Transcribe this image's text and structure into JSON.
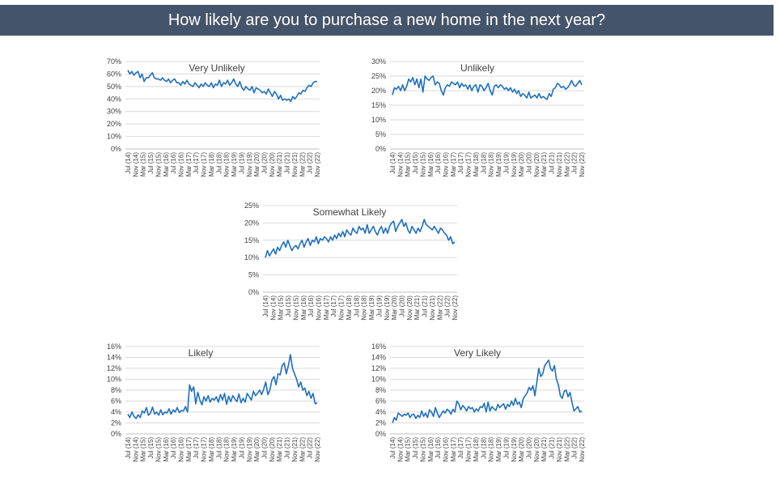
{
  "title": "How likely are you to purchase a new home in the next year?",
  "colors": {
    "title_bg": "#44546a",
    "title_text": "#ffffff",
    "line": "#1f6fbf",
    "grid": "#d9d9d9",
    "text": "#404040"
  },
  "chart_data": [
    {
      "type": "line",
      "title": "Very Unlikely",
      "yticks": [
        "0%",
        "10%",
        "20%",
        "30%",
        "40%",
        "50%",
        "60%",
        "70%"
      ],
      "ylim": [
        0,
        70
      ],
      "xticks": [
        "Jul (14)",
        "Nov (14)",
        "Mar (15)",
        "Jul (15)",
        "Nov (15)",
        "Mar (16)",
        "Jul (16)",
        "Nov (16)",
        "Mar (17)",
        "Jul (17)",
        "Nov (17)",
        "Mar (18)",
        "Jul (18)",
        "Nov (18)",
        "Mar (19)",
        "Jul (19)",
        "Nov (19)",
        "Mar (20)",
        "Jul (20)",
        "Nov (20)",
        "Mar (21)",
        "Jul (21)",
        "Nov (21)",
        "Mar (22)",
        "Jul (22)",
        "Nov (22)"
      ],
      "series": [
        {
          "values": [
            63,
            60,
            62,
            59,
            61,
            62,
            57,
            60,
            54,
            57,
            57,
            59,
            61,
            57,
            56,
            56,
            55,
            57,
            55,
            54,
            56,
            53,
            55,
            56,
            53,
            53,
            51,
            54,
            52,
            55,
            52,
            51,
            50,
            53,
            51,
            49,
            52,
            50,
            53,
            51,
            50,
            53,
            49,
            52,
            51,
            55,
            50,
            53,
            52,
            55,
            51,
            53,
            56,
            52,
            50,
            54,
            49,
            47,
            50,
            48,
            47,
            50,
            45,
            49,
            48,
            47,
            45,
            46,
            44,
            48,
            45,
            42,
            46,
            44,
            40,
            43,
            39,
            40,
            39,
            40,
            38,
            42,
            40,
            42,
            45,
            44,
            47,
            46,
            49,
            51,
            50,
            53,
            54,
            54
          ]
        }
      ]
    },
    {
      "type": "line",
      "title": "Unlikely",
      "yticks": [
        "0%",
        "5%",
        "10%",
        "15%",
        "20%",
        "25%",
        "30%"
      ],
      "ylim": [
        0,
        30
      ],
      "xticks": [
        "Jul (14)",
        "Nov (14)",
        "Mar (15)",
        "Jul (15)",
        "Nov (15)",
        "Mar (16)",
        "Jul (16)",
        "Nov (16)",
        "Mar (17)",
        "Jul (17)",
        "Nov (17)",
        "Mar (18)",
        "Jul (18)",
        "Nov (18)",
        "Mar (19)",
        "Jul (19)",
        "Nov (19)",
        "Mar (20)",
        "Jul (20)",
        "Nov (20)",
        "Mar (21)",
        "Jul (21)",
        "Nov (21)",
        "Mar (22)",
        "Jul (22)",
        "Nov (22)"
      ],
      "series": [
        {
          "values": [
            18.5,
            21,
            20.5,
            21.5,
            20,
            22,
            20,
            21.5,
            24,
            23,
            24.5,
            22,
            24,
            21,
            24,
            19.5,
            25,
            24,
            23.5,
            24.5,
            25,
            22,
            23,
            22.5,
            20,
            18.5,
            21,
            22,
            21.5,
            23,
            22.5,
            22,
            23,
            21,
            22.5,
            21.5,
            22,
            20.5,
            22,
            20,
            21.5,
            22,
            19.5,
            22,
            21.5,
            20,
            21,
            22.5,
            20,
            18.5,
            21.5,
            22,
            21,
            22,
            21.5,
            20.5,
            21,
            20,
            21,
            19.5,
            20.5,
            19,
            20,
            18,
            19,
            18.5,
            17.5,
            19.5,
            17.5,
            18,
            18.5,
            17.5,
            19,
            17.5,
            18,
            17.5,
            17,
            19,
            18,
            20.5,
            21,
            22.5,
            22,
            21,
            21.5,
            20.5,
            21,
            22,
            23.5,
            22,
            21.5,
            22.5,
            23.5,
            22
          ]
        }
      ]
    },
    {
      "type": "line",
      "title": "Somewhat Likely",
      "yticks": [
        "0%",
        "5%",
        "10%",
        "15%",
        "20%",
        "25%"
      ],
      "ylim": [
        0,
        25
      ],
      "xticks": [
        "Jul (14)",
        "Nov (14)",
        "Mar (15)",
        "Jul (15)",
        "Nov (15)",
        "Mar (16)",
        "Jul (16)",
        "Nov (16)",
        "Mar (17)",
        "Jul (17)",
        "Nov (17)",
        "Mar (18)",
        "Jul (18)",
        "Nov (18)",
        "Mar (19)",
        "Jul (19)",
        "Nov (19)",
        "Mar (20)",
        "Jul (20)",
        "Nov (20)",
        "Mar (21)",
        "Jul (21)",
        "Nov (21)",
        "Mar (22)",
        "Jul (22)",
        "Nov (22)"
      ],
      "series": [
        {
          "values": [
            10,
            12,
            10.5,
            11.5,
            12.5,
            11,
            13,
            12,
            13.5,
            14.5,
            13,
            15,
            13.5,
            12,
            13,
            13.5,
            12.5,
            14,
            15,
            13,
            14.5,
            15.5,
            13.5,
            15,
            14.5,
            16,
            14,
            15.5,
            15,
            16,
            15.5,
            14.5,
            16,
            15,
            16.5,
            15.5,
            17,
            16,
            17.5,
            16,
            18,
            17,
            16.5,
            18.5,
            17.5,
            17,
            19,
            18,
            18.5,
            17,
            19.5,
            17,
            18,
            19,
            17.5,
            16.5,
            18,
            19,
            17,
            18.5,
            17,
            19,
            20,
            20.5,
            17.5,
            19,
            20,
            21,
            19,
            20,
            18,
            17,
            19,
            18,
            17,
            18.5,
            17.5,
            19,
            21,
            19.5,
            19,
            18.5,
            18,
            19,
            18,
            17,
            18.5,
            18,
            17,
            16.5,
            15,
            16,
            14,
            14.5
          ]
        }
      ]
    },
    {
      "type": "line",
      "title": "Likely",
      "yticks": [
        "0%",
        "2%",
        "4%",
        "6%",
        "8%",
        "10%",
        "12%",
        "14%",
        "16%"
      ],
      "ylim": [
        0,
        16
      ],
      "xticks": [
        "Jul (14)",
        "Nov (14)",
        "Mar (15)",
        "Jul (15)",
        "Nov (15)",
        "Mar (16)",
        "Jul (16)",
        "Nov (16)",
        "Mar (17)",
        "Jul (17)",
        "Nov (17)",
        "Mar (18)",
        "Jul (18)",
        "Nov (18)",
        "Mar (19)",
        "Jul (19)",
        "Nov (19)",
        "Mar (20)",
        "Jul (20)",
        "Nov (20)",
        "Mar (21)",
        "Jul (21)",
        "Nov (21)",
        "Mar (22)",
        "Jul (22)",
        "Nov (22)"
      ],
      "series": [
        {
          "values": [
            3.6,
            3,
            4,
            3.2,
            2.8,
            3.5,
            3,
            4.2,
            3.8,
            4.8,
            3.4,
            3.8,
            4.9,
            3.6,
            4,
            3.4,
            4.4,
            3.5,
            4,
            3.8,
            4.6,
            3.6,
            4.4,
            4,
            4.8,
            3.9,
            4.3,
            4.2,
            5,
            4,
            9,
            7.8,
            8.6,
            5.5,
            7.6,
            6.2,
            5.3,
            6.8,
            6,
            7,
            5.8,
            6.5,
            6.2,
            6.8,
            5.8,
            7.2,
            6.2,
            7.4,
            5.4,
            6.9,
            5.9,
            7,
            6.4,
            5.9,
            7.3,
            5.7,
            6.5,
            5.8,
            7.4,
            6.8,
            6.2,
            7.8,
            7,
            7.4,
            8,
            7.2,
            8.2,
            9.5,
            7.2,
            8,
            9.8,
            10.5,
            9,
            11,
            10.8,
            12.5,
            13,
            11,
            12.5,
            14.5,
            12,
            11,
            10,
            8.6,
            9.5,
            8,
            8.4,
            7,
            7.8,
            6.5,
            7.4,
            5.5,
            5.7
          ]
        }
      ]
    },
    {
      "type": "line",
      "title": "Very Likely",
      "yticks": [
        "0%",
        "2%",
        "4%",
        "6%",
        "8%",
        "10%",
        "12%",
        "14%",
        "16%"
      ],
      "ylim": [
        0,
        16
      ],
      "xticks": [
        "Jul (14)",
        "Nov (14)",
        "Mar (15)",
        "Jul (15)",
        "Nov (15)",
        "Mar (16)",
        "Jul (16)",
        "Nov (16)",
        "Mar (17)",
        "Jul (17)",
        "Nov (17)",
        "Mar (18)",
        "Jul (18)",
        "Nov (18)",
        "Mar (19)",
        "Jul (19)",
        "Nov (19)",
        "Mar (20)",
        "Jul (20)",
        "Nov (20)",
        "Mar (21)",
        "Jul (21)",
        "Nov (21)",
        "Mar (22)",
        "Jul (22)",
        "Nov (22)"
      ],
      "series": [
        {
          "values": [
            2,
            3,
            2.5,
            3.8,
            3.5,
            3.2,
            3.6,
            3.4,
            3.8,
            3,
            3.5,
            3.6,
            2.8,
            3.4,
            3,
            4.2,
            3.2,
            3.8,
            3,
            4.4,
            4,
            3.2,
            4.8,
            3.8,
            3,
            3.6,
            4.2,
            3.8,
            4.5,
            4.2,
            3.6,
            4.5,
            4,
            6,
            5.5,
            4.4,
            5.2,
            4.8,
            4.2,
            5,
            4.6,
            4.8,
            4,
            4.6,
            4.2,
            5,
            4.8,
            5.6,
            4,
            5.8,
            4.2,
            5,
            4.6,
            4.3,
            5.4,
            4.8,
            5.2,
            5.5,
            4.5,
            5.4,
            5,
            6,
            5.2,
            6.5,
            5.4,
            5.8,
            4.8,
            6.4,
            7,
            7.5,
            8.5,
            8,
            8.8,
            7,
            9.5,
            12,
            10.5,
            11,
            12.5,
            13,
            13.5,
            12,
            11.5,
            12.5,
            10,
            9,
            7,
            6.5,
            7.8,
            8,
            6.8,
            7.6,
            5.8,
            4.2,
            4.6,
            5,
            4,
            4.2
          ]
        }
      ]
    }
  ]
}
